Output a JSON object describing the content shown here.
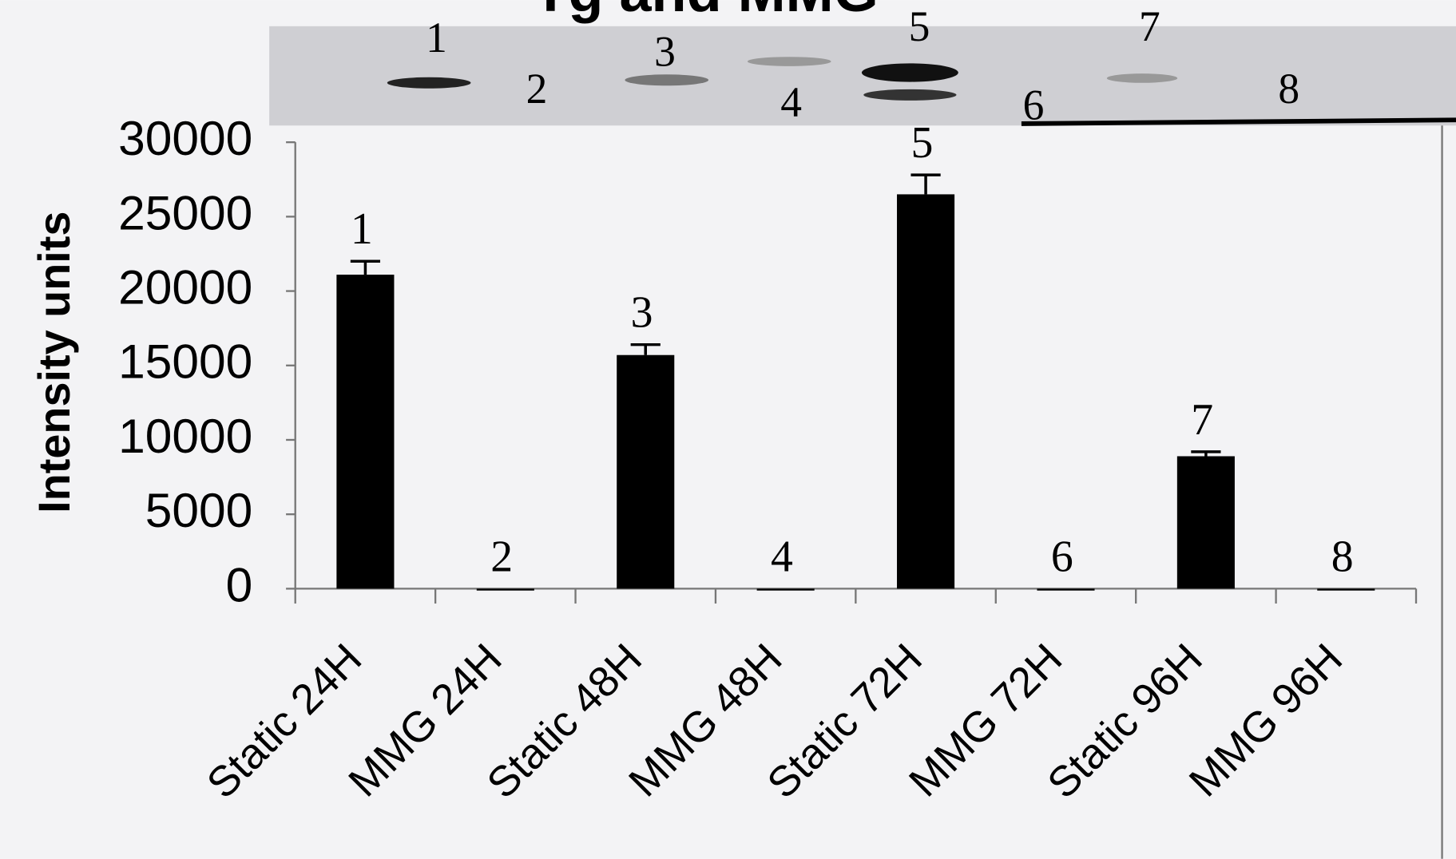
{
  "chart_data": {
    "type": "bar",
    "title": "Tg and MMG",
    "y_label": "Intensity units",
    "categories": [
      "Static 24H",
      "MMG 24H",
      "Static 48H",
      "MMG 48H",
      "Static 72H",
      "MMG 72H",
      "Static 96H",
      "MMG 96H"
    ],
    "values": [
      21100,
      0,
      15700,
      0,
      26500,
      0,
      8900,
      0
    ],
    "errors": [
      900,
      0,
      700,
      0,
      1300,
      0,
      300,
      0
    ],
    "lane_labels": [
      "1",
      "2",
      "3",
      "4",
      "5",
      "6",
      "7",
      "8"
    ],
    "color": "#000000",
    "ylim": [
      0,
      30000
    ],
    "yticks": [
      0,
      5000,
      10000,
      15000,
      20000,
      25000,
      30000
    ],
    "grid": false
  }
}
